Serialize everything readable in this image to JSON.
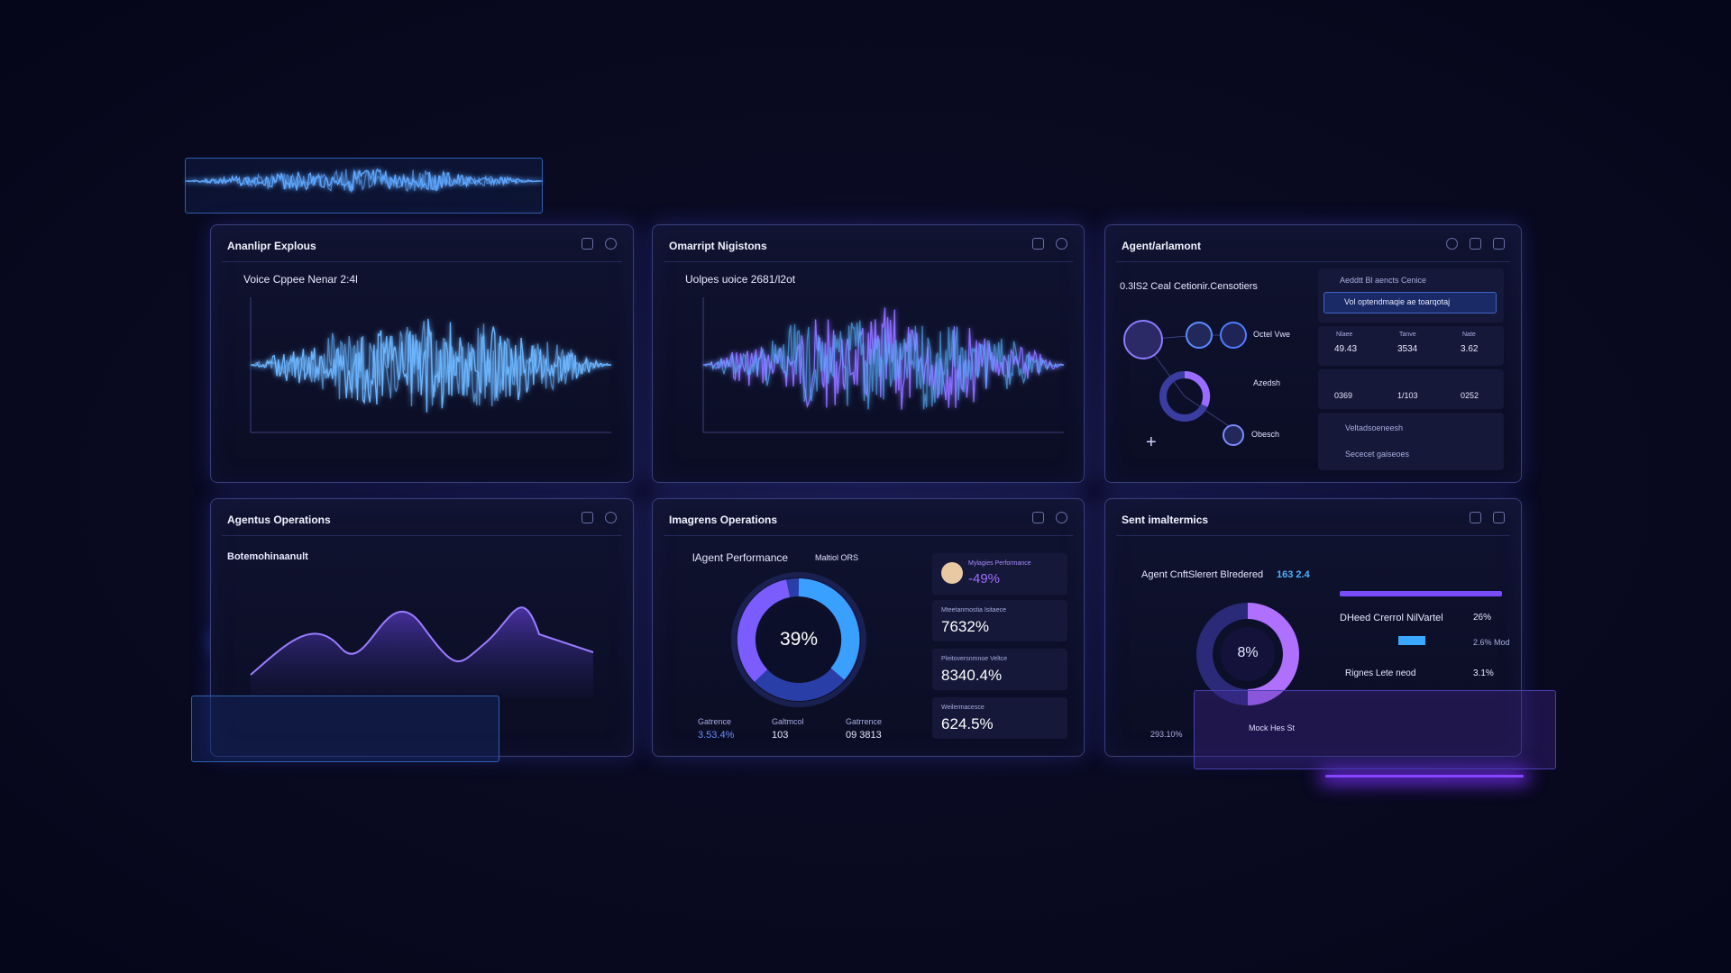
{
  "panels": [
    {
      "title": "Ananlipr Explous",
      "subtitle": "Voice Cppee Nenar 2:4l"
    },
    {
      "title": "Omarript Nigistons",
      "subtitle": "Uolpes uoice 2681/l2ot"
    },
    {
      "title": "Agent/arlamont",
      "subtitle": "0.3lS2 Ceal Cetionir.Censotiers",
      "agents": [
        "Octel Vwe",
        "Azedsh",
        "Obesch"
      ],
      "card_title": "Aeddtt Bl aencts Cenice",
      "highlight": "Vol optendmaqie ae toarqotaj",
      "stat_labels": [
        "Nlaee",
        "Tanve",
        "Nate"
      ],
      "stats": [
        "49.43",
        "3534",
        "3.62",
        "0369",
        "1/103",
        "0252"
      ],
      "links": [
        "Veltadsoeneesh",
        "Sececet gaiseoes"
      ]
    },
    {
      "title": "Agentus Operations",
      "subtitle": "Botemohinaanult"
    },
    {
      "title": "Imagrens Operations",
      "subtitle": "lAgent Performance",
      "legend": "Maltiol ORS",
      "center": "39%",
      "kpis": [
        {
          "label": "Mylagies Performance",
          "value": "-49%"
        },
        {
          "label": "Mteetanmostia Isitaece",
          "value": "7632%"
        },
        {
          "label": "Pleitoversnmnoe Veltce",
          "value": "8340.4%"
        },
        {
          "label": "Weilermacesce",
          "value": "624.5%"
        }
      ],
      "footer": [
        {
          "label": "Gatrence",
          "value": "3.53.4%"
        },
        {
          "label": "Galtmcol",
          "value": "103"
        },
        {
          "label": "Gatrrence",
          "value": "09 3813"
        }
      ]
    },
    {
      "title": "Sent imaltermics",
      "subtitle": "Agent CnftSlerert Blredered",
      "highlight": "163 2.4",
      "center": "8%",
      "rows": [
        {
          "label": "DHeed Crerrol NilVartel",
          "value": "26%"
        },
        {
          "label": "Rignes Lete neod",
          "value": "3.1%"
        }
      ],
      "side_value": "2.6% Mod",
      "overlay": "Mock Hes St",
      "footer": "293.10%"
    }
  ]
}
